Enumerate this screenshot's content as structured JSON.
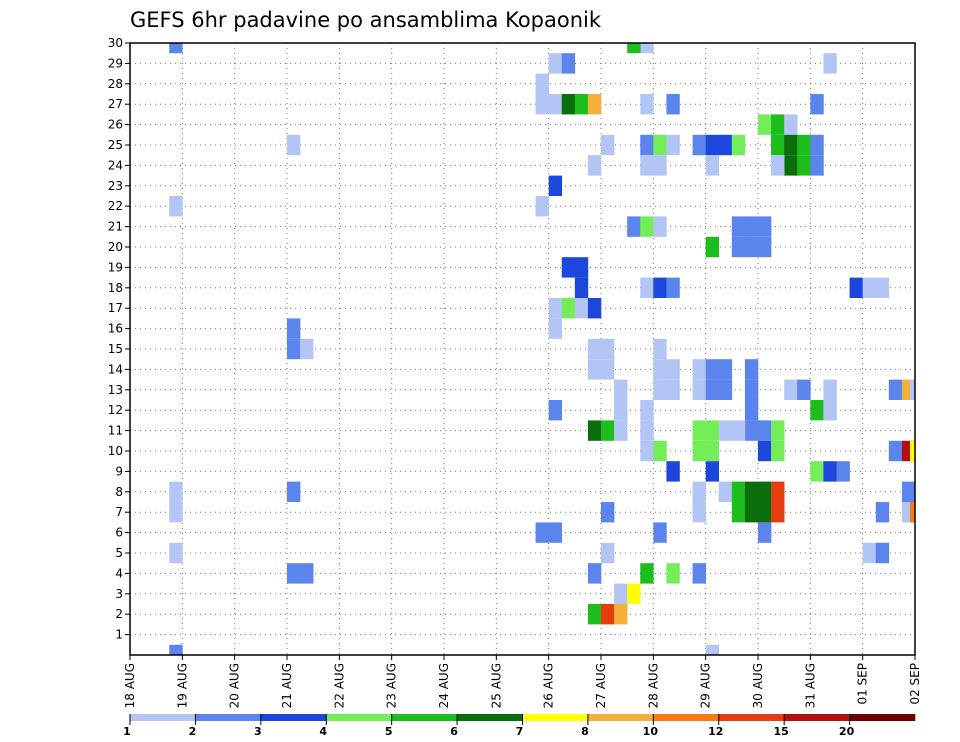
{
  "chart_data": {
    "type": "heatmap",
    "title": "GEFS 6hr padavine po ansamblima Kopaonik",
    "xlabel": "",
    "ylabel": "",
    "x_ticks": [
      "18 AUG",
      "19 AUG",
      "20 AUG",
      "21 AUG",
      "22 AUG",
      "23 AUG",
      "24 AUG",
      "25 AUG",
      "26 AUG",
      "27 AUG",
      "28 AUG",
      "29 AUG",
      "30 AUG",
      "31 AUG",
      "01 SEP",
      "02 SEP"
    ],
    "y_ticks": [
      "1",
      "2",
      "3",
      "4",
      "5",
      "6",
      "7",
      "8",
      "9",
      "10",
      "11",
      "12",
      "13",
      "14",
      "15",
      "16",
      "17",
      "18",
      "19",
      "20",
      "21",
      "22",
      "23",
      "24",
      "25",
      "26",
      "27",
      "28",
      "29",
      "30"
    ],
    "x_range_days": [
      0,
      15
    ],
    "y_range": [
      0,
      30
    ],
    "grid": true,
    "legend_position": "bottom",
    "legend_labels": [
      "1",
      "2",
      "3",
      "4",
      "5",
      "6",
      "7",
      "8",
      "10",
      "12",
      "15",
      "20"
    ],
    "legend_colors": [
      "#b3c5f5",
      "#5b84ec",
      "#1c46dc",
      "#74ee58",
      "#1cbe1c",
      "#0a6e0a",
      "#ffff00",
      "#f5b03c",
      "#f57c0f",
      "#e63c0f",
      "#b40f0f",
      "#6e0000"
    ],
    "cells": [
      {
        "d": 0.75,
        "m": 30,
        "c": 2
      },
      {
        "d": 0.75,
        "m": 22,
        "c": 1
      },
      {
        "d": 0.75,
        "m": 8,
        "c": 1
      },
      {
        "d": 0.75,
        "m": 7,
        "c": 1
      },
      {
        "d": 0.75,
        "m": 5,
        "c": 1
      },
      {
        "d": 0.75,
        "m": 0,
        "c": 2
      },
      {
        "d": 3.0,
        "m": 25,
        "c": 1
      },
      {
        "d": 3.0,
        "m": 16,
        "c": 2
      },
      {
        "d": 3.0,
        "m": 15,
        "c": 2
      },
      {
        "d": 3.25,
        "m": 15,
        "c": 1
      },
      {
        "d": 3.0,
        "m": 8,
        "c": 2
      },
      {
        "d": 3.0,
        "m": 4,
        "c": 2
      },
      {
        "d": 3.25,
        "m": 4,
        "c": 2
      },
      {
        "d": 7.75,
        "m": 28,
        "c": 1
      },
      {
        "d": 7.75,
        "m": 27,
        "c": 1
      },
      {
        "d": 8.0,
        "m": 27,
        "c": 1
      },
      {
        "d": 8.0,
        "m": 29,
        "c": 1
      },
      {
        "d": 8.25,
        "m": 29,
        "c": 2
      },
      {
        "d": 8.25,
        "m": 27,
        "c": 6
      },
      {
        "d": 8.5,
        "m": 27,
        "c": 5
      },
      {
        "d": 8.75,
        "m": 27,
        "c": 8
      },
      {
        "d": 8.0,
        "m": 23,
        "c": 3
      },
      {
        "d": 7.75,
        "m": 22,
        "c": 1
      },
      {
        "d": 8.25,
        "m": 19,
        "c": 3
      },
      {
        "d": 8.5,
        "m": 19,
        "c": 3
      },
      {
        "d": 8.5,
        "m": 18,
        "c": 3
      },
      {
        "d": 8.0,
        "m": 17,
        "c": 1
      },
      {
        "d": 8.25,
        "m": 17,
        "c": 4
      },
      {
        "d": 8.5,
        "m": 17,
        "c": 1
      },
      {
        "d": 8.75,
        "m": 17,
        "c": 3
      },
      {
        "d": 8.0,
        "m": 16,
        "c": 1
      },
      {
        "d": 8.75,
        "m": 15,
        "c": 1
      },
      {
        "d": 9.0,
        "m": 15,
        "c": 1
      },
      {
        "d": 8.75,
        "m": 14,
        "c": 1
      },
      {
        "d": 9.0,
        "m": 14,
        "c": 1
      },
      {
        "d": 8.0,
        "m": 12,
        "c": 2
      },
      {
        "d": 9.25,
        "m": 13,
        "c": 1
      },
      {
        "d": 9.25,
        "m": 12,
        "c": 1
      },
      {
        "d": 8.75,
        "m": 11,
        "c": 6
      },
      {
        "d": 9.0,
        "m": 11,
        "c": 5
      },
      {
        "d": 9.25,
        "m": 11,
        "c": 1
      },
      {
        "d": 7.75,
        "m": 6,
        "c": 2
      },
      {
        "d": 8.0,
        "m": 6,
        "c": 2
      },
      {
        "d": 9.0,
        "m": 7,
        "c": 2
      },
      {
        "d": 9.0,
        "m": 5,
        "c": 1
      },
      {
        "d": 8.75,
        "m": 4,
        "c": 2
      },
      {
        "d": 9.25,
        "m": 3,
        "c": 1
      },
      {
        "d": 9.5,
        "m": 3,
        "c": 7
      },
      {
        "d": 8.75,
        "m": 2,
        "c": 5
      },
      {
        "d": 9.0,
        "m": 2,
        "c": 10
      },
      {
        "d": 9.25,
        "m": 2,
        "c": 8
      },
      {
        "d": 9.75,
        "m": 30,
        "c": 1
      },
      {
        "d": 9.5,
        "m": 30,
        "c": 5
      },
      {
        "d": 9.0,
        "m": 25,
        "c": 1
      },
      {
        "d": 8.75,
        "m": 24,
        "c": 1
      },
      {
        "d": 9.75,
        "m": 27,
        "c": 1
      },
      {
        "d": 10.25,
        "m": 27,
        "c": 2
      },
      {
        "d": 9.75,
        "m": 25,
        "c": 2
      },
      {
        "d": 10.0,
        "m": 25,
        "c": 4
      },
      {
        "d": 10.25,
        "m": 25,
        "c": 1
      },
      {
        "d": 9.75,
        "m": 24,
        "c": 1
      },
      {
        "d": 10.0,
        "m": 24,
        "c": 1
      },
      {
        "d": 9.5,
        "m": 21,
        "c": 2
      },
      {
        "d": 9.75,
        "m": 21,
        "c": 4
      },
      {
        "d": 10.0,
        "m": 21,
        "c": 1
      },
      {
        "d": 9.75,
        "m": 18,
        "c": 1
      },
      {
        "d": 10.0,
        "m": 18,
        "c": 3
      },
      {
        "d": 10.25,
        "m": 18,
        "c": 2
      },
      {
        "d": 10.0,
        "m": 15,
        "c": 1
      },
      {
        "d": 10.0,
        "m": 14,
        "c": 1
      },
      {
        "d": 10.0,
        "m": 13,
        "c": 1
      },
      {
        "d": 10.25,
        "m": 14,
        "c": 1
      },
      {
        "d": 10.25,
        "m": 13,
        "c": 1
      },
      {
        "d": 9.75,
        "m": 12,
        "c": 1
      },
      {
        "d": 9.75,
        "m": 11,
        "c": 1
      },
      {
        "d": 9.75,
        "m": 10,
        "c": 1
      },
      {
        "d": 10.0,
        "m": 10,
        "c": 4
      },
      {
        "d": 10.25,
        "m": 9,
        "c": 3
      },
      {
        "d": 10.0,
        "m": 6,
        "c": 2
      },
      {
        "d": 9.75,
        "m": 4,
        "c": 5
      },
      {
        "d": 10.25,
        "m": 4,
        "c": 4
      },
      {
        "d": 10.75,
        "m": 25,
        "c": 2
      },
      {
        "d": 11.0,
        "m": 25,
        "c": 3
      },
      {
        "d": 11.25,
        "m": 25,
        "c": 3
      },
      {
        "d": 11.5,
        "m": 25,
        "c": 4
      },
      {
        "d": 11.0,
        "m": 24,
        "c": 1
      },
      {
        "d": 11.0,
        "m": 20,
        "c": 5
      },
      {
        "d": 11.5,
        "m": 20,
        "c": 2
      },
      {
        "d": 11.75,
        "m": 20,
        "c": 2
      },
      {
        "d": 12.0,
        "m": 20,
        "c": 2
      },
      {
        "d": 11.5,
        "m": 21,
        "c": 2
      },
      {
        "d": 11.75,
        "m": 21,
        "c": 2
      },
      {
        "d": 12.0,
        "m": 21,
        "c": 2
      },
      {
        "d": 10.75,
        "m": 14,
        "c": 1
      },
      {
        "d": 10.75,
        "m": 13,
        "c": 1
      },
      {
        "d": 11.0,
        "m": 14,
        "c": 2
      },
      {
        "d": 11.0,
        "m": 13,
        "c": 2
      },
      {
        "d": 11.25,
        "m": 14,
        "c": 2
      },
      {
        "d": 11.25,
        "m": 13,
        "c": 2
      },
      {
        "d": 11.75,
        "m": 14,
        "c": 2
      },
      {
        "d": 11.75,
        "m": 13,
        "c": 2
      },
      {
        "d": 11.75,
        "m": 12,
        "c": 2
      },
      {
        "d": 11.75,
        "m": 11,
        "c": 2
      },
      {
        "d": 12.0,
        "m": 11,
        "c": 2
      },
      {
        "d": 12.0,
        "m": 10,
        "c": 3
      },
      {
        "d": 10.75,
        "m": 11,
        "c": 4
      },
      {
        "d": 11.0,
        "m": 11,
        "c": 4
      },
      {
        "d": 10.75,
        "m": 10,
        "c": 4
      },
      {
        "d": 11.0,
        "m": 10,
        "c": 4
      },
      {
        "d": 11.25,
        "m": 11,
        "c": 1
      },
      {
        "d": 11.5,
        "m": 11,
        "c": 1
      },
      {
        "d": 12.25,
        "m": 11,
        "c": 4
      },
      {
        "d": 12.25,
        "m": 10,
        "c": 4
      },
      {
        "d": 11.0,
        "m": 9,
        "c": 3
      },
      {
        "d": 10.75,
        "m": 8,
        "c": 1
      },
      {
        "d": 10.75,
        "m": 7,
        "c": 1
      },
      {
        "d": 11.25,
        "m": 8,
        "c": 1
      },
      {
        "d": 11.5,
        "m": 8,
        "c": 5
      },
      {
        "d": 11.75,
        "m": 8,
        "c": 6
      },
      {
        "d": 12.0,
        "m": 8,
        "c": 6
      },
      {
        "d": 12.25,
        "m": 8,
        "c": 10
      },
      {
        "d": 11.5,
        "m": 7,
        "c": 5
      },
      {
        "d": 11.75,
        "m": 7,
        "c": 6
      },
      {
        "d": 12.0,
        "m": 7,
        "c": 6
      },
      {
        "d": 12.25,
        "m": 7,
        "c": 10
      },
      {
        "d": 12.0,
        "m": 6,
        "c": 2
      },
      {
        "d": 10.75,
        "m": 4,
        "c": 2
      },
      {
        "d": 11.0,
        "m": 0,
        "c": 1
      },
      {
        "d": 12.0,
        "m": 26,
        "c": 4
      },
      {
        "d": 12.25,
        "m": 26,
        "c": 5
      },
      {
        "d": 12.5,
        "m": 26,
        "c": 1
      },
      {
        "d": 12.25,
        "m": 25,
        "c": 5
      },
      {
        "d": 12.5,
        "m": 25,
        "c": 6
      },
      {
        "d": 12.75,
        "m": 25,
        "c": 5
      },
      {
        "d": 13.0,
        "m": 25,
        "c": 2
      },
      {
        "d": 12.5,
        "m": 24,
        "c": 6
      },
      {
        "d": 12.75,
        "m": 24,
        "c": 5
      },
      {
        "d": 13.0,
        "m": 24,
        "c": 2
      },
      {
        "d": 12.25,
        "m": 24,
        "c": 1
      },
      {
        "d": 13.0,
        "m": 27,
        "c": 2
      },
      {
        "d": 13.25,
        "m": 29,
        "c": 1
      },
      {
        "d": 12.5,
        "m": 13,
        "c": 1
      },
      {
        "d": 12.75,
        "m": 13,
        "c": 2
      },
      {
        "d": 13.25,
        "m": 13,
        "c": 1
      },
      {
        "d": 13.0,
        "m": 12,
        "c": 5
      },
      {
        "d": 13.25,
        "m": 12,
        "c": 1
      },
      {
        "d": 13.0,
        "m": 9,
        "c": 4
      },
      {
        "d": 13.25,
        "m": 9,
        "c": 3
      },
      {
        "d": 13.5,
        "m": 9,
        "c": 2
      },
      {
        "d": 13.75,
        "m": 18,
        "c": 3
      },
      {
        "d": 14.0,
        "m": 18,
        "c": 1
      },
      {
        "d": 14.25,
        "m": 18,
        "c": 1
      },
      {
        "d": 14.25,
        "m": 7,
        "c": 2
      },
      {
        "d": 14.0,
        "m": 5,
        "c": 1
      },
      {
        "d": 14.25,
        "m": 5,
        "c": 2
      },
      {
        "d": 14.5,
        "m": 13,
        "c": 2
      },
      {
        "d": 14.75,
        "m": 13,
        "c": 8
      },
      {
        "d": 14.5,
        "m": 10,
        "c": 2
      },
      {
        "d": 14.75,
        "m": 10,
        "c": 11
      },
      {
        "d": 14.75,
        "m": 8,
        "c": 2
      },
      {
        "d": 14.75,
        "m": 7,
        "c": 1
      }
    ],
    "edge_cells": [
      {
        "m": 13,
        "c": 1
      },
      {
        "m": 10,
        "c": 7
      },
      {
        "m": 7,
        "c": 9
      }
    ]
  }
}
